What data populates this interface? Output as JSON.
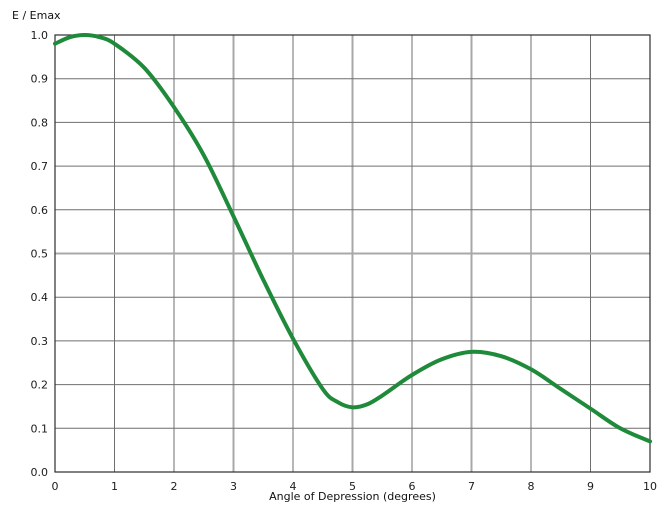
{
  "chart_data": {
    "type": "line",
    "title": "",
    "xlabel": "Angle of Depression (degrees)",
    "ylabel": "E / Emax",
    "xlim": [
      0,
      10
    ],
    "ylim": [
      0.0,
      1.0
    ],
    "x_ticks": [
      "0",
      "1",
      "2",
      "3",
      "4",
      "5",
      "6",
      "7",
      "8",
      "9",
      "10"
    ],
    "y_ticks": [
      "0.0",
      "0.1",
      "0.2",
      "0.3",
      "0.4",
      "0.5",
      "0.6",
      "0.7",
      "0.8",
      "0.9",
      "1.0"
    ],
    "grid": true,
    "legend": "none",
    "series": [
      {
        "color": "#1f8a3a",
        "points": [
          [
            0.0,
            0.98
          ],
          [
            0.25,
            0.995
          ],
          [
            0.5,
            1.0
          ],
          [
            0.75,
            0.995
          ],
          [
            1.0,
            0.98
          ],
          [
            1.5,
            0.925
          ],
          [
            2.0,
            0.835
          ],
          [
            2.5,
            0.725
          ],
          [
            3.0,
            0.585
          ],
          [
            3.5,
            0.44
          ],
          [
            4.0,
            0.305
          ],
          [
            4.5,
            0.19
          ],
          [
            4.75,
            0.16
          ],
          [
            5.0,
            0.148
          ],
          [
            5.25,
            0.155
          ],
          [
            5.5,
            0.175
          ],
          [
            6.0,
            0.222
          ],
          [
            6.5,
            0.258
          ],
          [
            7.0,
            0.275
          ],
          [
            7.5,
            0.265
          ],
          [
            8.0,
            0.235
          ],
          [
            8.5,
            0.19
          ],
          [
            9.0,
            0.145
          ],
          [
            9.5,
            0.1
          ],
          [
            10.0,
            0.07
          ]
        ]
      }
    ]
  }
}
